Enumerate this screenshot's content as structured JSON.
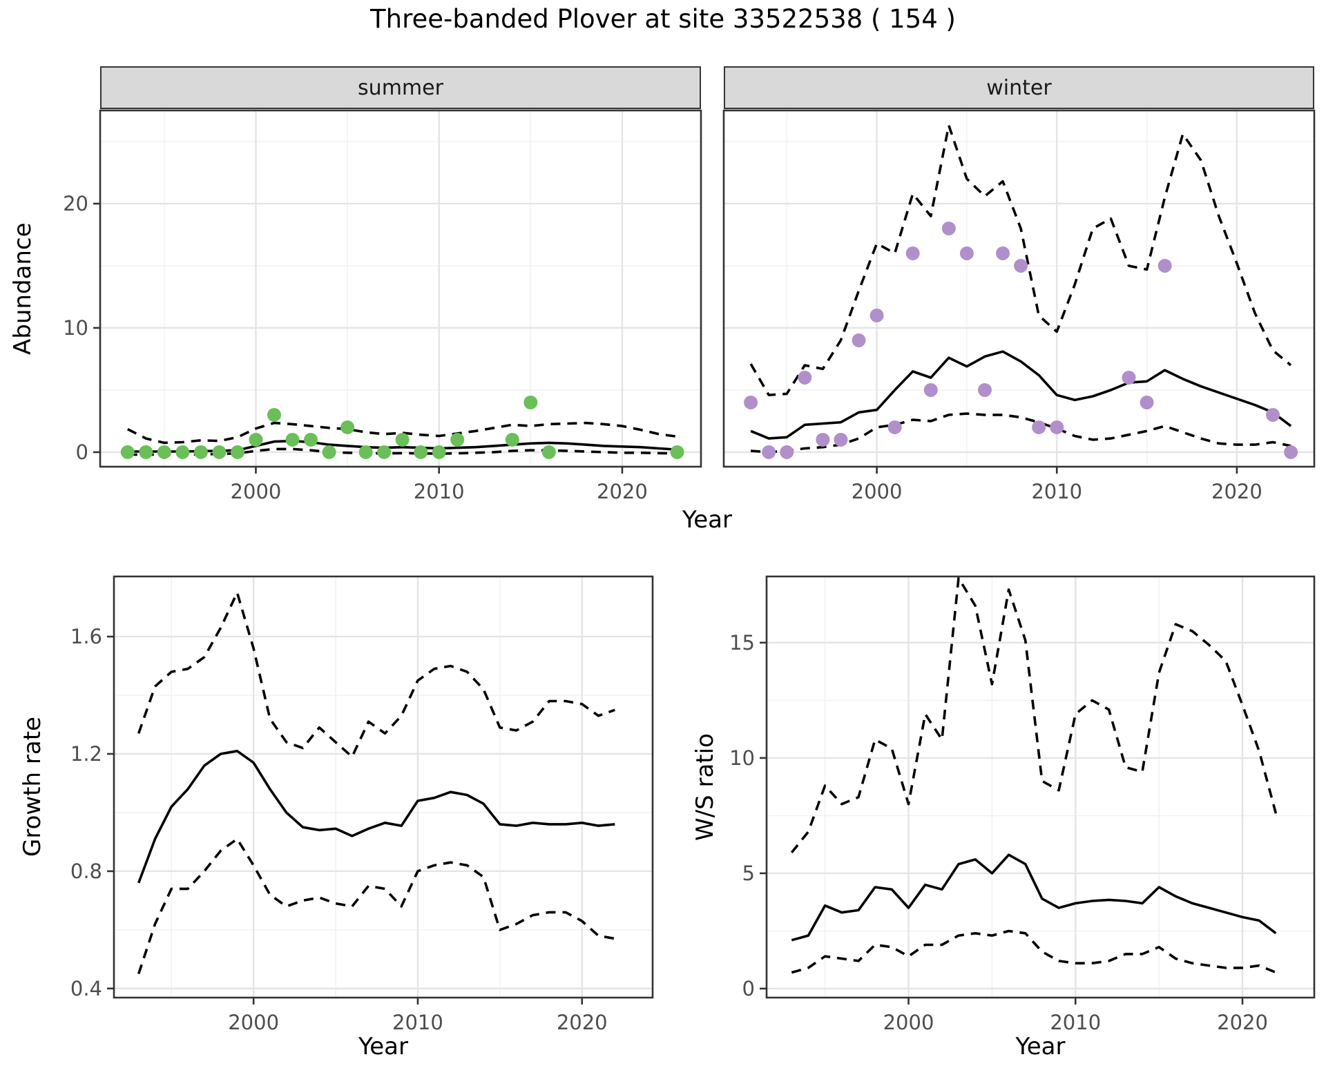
{
  "title": "Three-banded Plover at site 33522538 ( 154 )",
  "facets": {
    "summer": "summer",
    "winter": "winter"
  },
  "axes": {
    "x_label": "Year",
    "abundance_label": "Abundance",
    "growth_label": "Growth rate",
    "ws_label": "W/S ratio"
  },
  "colors": {
    "summer_points": "#6abf59",
    "winter_points": "#b18fcb",
    "line": "#000000",
    "strip_bg": "#d9d9d9",
    "grid_major": "#e4e4e4",
    "grid_minor": "#f2f2f2",
    "panel_border": "#333333",
    "tick_mark": "#333333",
    "tick_text": "#4d4d4d"
  },
  "chart_data": [
    {
      "id": "summer-abundance",
      "type": "line",
      "facet": "summer",
      "xlabel": "Year",
      "ylabel": "Abundance",
      "xlim": [
        1991.5,
        2024.3
      ],
      "ylim": [
        -1.17,
        27.5
      ],
      "xticks": [
        2000,
        2010,
        2020
      ],
      "xminor": [
        1995,
        2005,
        2015
      ],
      "yticks": [
        0,
        10,
        20
      ],
      "yminor": [
        5,
        15,
        25
      ],
      "x": [
        1993,
        1994,
        1995,
        1996,
        1997,
        1998,
        1999,
        2000,
        2001,
        2002,
        2003,
        2004,
        2005,
        2006,
        2007,
        2008,
        2009,
        2010,
        2011,
        2012,
        2013,
        2014,
        2015,
        2016,
        2017,
        2018,
        2019,
        2020,
        2021,
        2022,
        2023
      ],
      "series": [
        {
          "name": "median",
          "style": "solid",
          "values": [
            0.05,
            0.05,
            0.05,
            0.05,
            0.08,
            0.1,
            0.15,
            0.5,
            0.85,
            0.9,
            0.8,
            0.6,
            0.5,
            0.4,
            0.35,
            0.4,
            0.35,
            0.3,
            0.35,
            0.4,
            0.5,
            0.6,
            0.7,
            0.75,
            0.7,
            0.6,
            0.5,
            0.45,
            0.4,
            0.3,
            0.2
          ]
        },
        {
          "name": "upper_ci",
          "style": "dashed",
          "values": [
            1.85,
            1.1,
            0.75,
            0.8,
            0.95,
            0.9,
            1.2,
            1.9,
            2.35,
            2.25,
            2.1,
            1.95,
            1.85,
            1.6,
            1.45,
            1.55,
            1.4,
            1.3,
            1.5,
            1.7,
            1.95,
            2.2,
            2.1,
            2.25,
            2.3,
            2.35,
            2.25,
            2.1,
            1.8,
            1.45,
            1.25
          ]
        },
        {
          "name": "lower_ci",
          "style": "dashed",
          "values": [
            -0.2,
            -0.2,
            -0.2,
            -0.2,
            -0.18,
            -0.15,
            -0.1,
            0.1,
            0.25,
            0.25,
            0.15,
            0.0,
            -0.05,
            -0.08,
            -0.1,
            -0.08,
            -0.1,
            -0.12,
            -0.1,
            -0.05,
            0.0,
            0.1,
            0.15,
            0.15,
            0.1,
            0.05,
            0.0,
            -0.05,
            -0.05,
            -0.08,
            -0.1
          ]
        }
      ],
      "points": {
        "color": "#6abf59",
        "x": [
          1993,
          1994,
          1995,
          1996,
          1997,
          1998,
          1999,
          2000,
          2001,
          2002,
          2003,
          2004,
          2005,
          2006,
          2007,
          2008,
          2009,
          2010,
          2011,
          2014,
          2015,
          2016,
          2023
        ],
        "y": [
          0,
          0,
          0,
          0,
          0,
          0,
          0,
          1,
          3,
          1,
          1,
          0,
          2,
          0,
          0,
          1,
          0,
          0,
          1,
          1,
          4,
          0,
          0
        ]
      }
    },
    {
      "id": "winter-abundance",
      "type": "line",
      "facet": "winter",
      "xlabel": "Year",
      "ylabel": "Abundance",
      "xlim": [
        1991.5,
        2024.3
      ],
      "ylim": [
        -1.17,
        27.5
      ],
      "xticks": [
        2000,
        2010,
        2020
      ],
      "xminor": [
        1995,
        2005,
        2015
      ],
      "yticks": [
        0,
        10,
        20
      ],
      "yminor": [
        5,
        15,
        25
      ],
      "x": [
        1993,
        1994,
        1995,
        1996,
        1997,
        1998,
        1999,
        2000,
        2001,
        2002,
        2003,
        2004,
        2005,
        2006,
        2007,
        2008,
        2009,
        2010,
        2011,
        2012,
        2013,
        2014,
        2015,
        2016,
        2017,
        2018,
        2019,
        2020,
        2021,
        2022,
        2023
      ],
      "series": [
        {
          "name": "median",
          "style": "solid",
          "values": [
            1.7,
            1.1,
            1.2,
            2.2,
            2.3,
            2.4,
            3.2,
            3.4,
            5.0,
            6.5,
            6.0,
            7.6,
            6.9,
            7.7,
            8.1,
            7.3,
            6.2,
            4.6,
            4.2,
            4.5,
            5.0,
            5.6,
            5.7,
            6.6,
            5.9,
            5.3,
            4.8,
            4.3,
            3.8,
            3.2,
            2.1
          ]
        },
        {
          "name": "upper_ci",
          "style": "dashed",
          "values": [
            7.1,
            4.6,
            4.7,
            7.0,
            6.7,
            9.0,
            13.0,
            16.8,
            16.0,
            20.8,
            19.0,
            26.3,
            22.0,
            20.6,
            21.8,
            18.0,
            11.0,
            9.7,
            13.5,
            18.0,
            18.8,
            15.0,
            14.7,
            20.5,
            25.6,
            23.5,
            19.0,
            15.2,
            11.2,
            8.2,
            7.0
          ]
        },
        {
          "name": "lower_ci",
          "style": "dashed",
          "values": [
            0.1,
            0.0,
            0.1,
            0.3,
            0.4,
            0.6,
            1.1,
            2.0,
            2.2,
            2.6,
            2.5,
            3.0,
            3.1,
            3.0,
            3.0,
            2.8,
            2.4,
            1.9,
            1.3,
            1.0,
            1.1,
            1.4,
            1.7,
            2.1,
            1.6,
            1.1,
            0.7,
            0.6,
            0.6,
            0.8,
            0.5
          ]
        }
      ],
      "points": {
        "color": "#b18fcb",
        "x": [
          1993,
          1994,
          1995,
          1996,
          1997,
          1998,
          1999,
          2000,
          2001,
          2002,
          2003,
          2004,
          2005,
          2006,
          2007,
          2008,
          2009,
          2010,
          2014,
          2015,
          2016,
          2022,
          2023
        ],
        "y": [
          4,
          0,
          0,
          6,
          1,
          1,
          9,
          11,
          2,
          16,
          5,
          18,
          16,
          5,
          16,
          15,
          2,
          2,
          6,
          4,
          15,
          3,
          0
        ]
      }
    },
    {
      "id": "growth-rate",
      "type": "line",
      "facet": null,
      "xlabel": "Year",
      "ylabel": "Growth rate",
      "xlim": [
        1991.5,
        2024.3
      ],
      "ylim": [
        0.369,
        1.805
      ],
      "xticks": [
        2000,
        2010,
        2020
      ],
      "xminor": [
        1995,
        2005,
        2015
      ],
      "yticks": [
        0.4,
        0.8,
        1.2,
        1.6
      ],
      "yminor": [
        0.6,
        1.0,
        1.4
      ],
      "x": [
        1993,
        1994,
        1995,
        1996,
        1997,
        1998,
        1999,
        2000,
        2001,
        2002,
        2003,
        2004,
        2005,
        2006,
        2007,
        2008,
        2009,
        2010,
        2011,
        2012,
        2013,
        2014,
        2015,
        2016,
        2017,
        2018,
        2019,
        2020,
        2021,
        2022
      ],
      "series": [
        {
          "name": "median",
          "style": "solid",
          "values": [
            0.76,
            0.91,
            1.02,
            1.08,
            1.16,
            1.2,
            1.21,
            1.17,
            1.08,
            1.0,
            0.95,
            0.94,
            0.945,
            0.92,
            0.945,
            0.965,
            0.955,
            1.04,
            1.05,
            1.07,
            1.06,
            1.03,
            0.96,
            0.955,
            0.965,
            0.96,
            0.96,
            0.965,
            0.955,
            0.96
          ]
        },
        {
          "name": "upper_ci",
          "style": "dashed",
          "values": [
            1.27,
            1.43,
            1.48,
            1.49,
            1.53,
            1.63,
            1.75,
            1.56,
            1.32,
            1.24,
            1.22,
            1.29,
            1.24,
            1.19,
            1.31,
            1.27,
            1.33,
            1.45,
            1.49,
            1.5,
            1.48,
            1.42,
            1.29,
            1.28,
            1.31,
            1.38,
            1.38,
            1.37,
            1.33,
            1.35
          ]
        },
        {
          "name": "lower_ci",
          "style": "dashed",
          "values": [
            0.45,
            0.62,
            0.74,
            0.74,
            0.8,
            0.87,
            0.91,
            0.82,
            0.72,
            0.68,
            0.7,
            0.71,
            0.69,
            0.68,
            0.75,
            0.74,
            0.68,
            0.8,
            0.82,
            0.83,
            0.82,
            0.78,
            0.6,
            0.62,
            0.65,
            0.66,
            0.66,
            0.63,
            0.58,
            0.57
          ]
        }
      ],
      "points": null
    },
    {
      "id": "ws-ratio",
      "type": "line",
      "facet": null,
      "xlabel": "Year",
      "ylabel": "W/S ratio",
      "xlim": [
        1991.5,
        2024.3
      ],
      "ylim": [
        -0.39,
        17.87
      ],
      "xticks": [
        2000,
        2010,
        2020
      ],
      "xminor": [
        1995,
        2005,
        2015
      ],
      "yticks": [
        0,
        5,
        10,
        15
      ],
      "yminor": [
        2.5,
        7.5,
        12.5
      ],
      "x": [
        1993,
        1994,
        1995,
        1996,
        1997,
        1998,
        1999,
        2000,
        2001,
        2002,
        2003,
        2004,
        2005,
        2006,
        2007,
        2008,
        2009,
        2010,
        2011,
        2012,
        2013,
        2014,
        2015,
        2016,
        2017,
        2018,
        2019,
        2020,
        2021,
        2022
      ],
      "series": [
        {
          "name": "median",
          "style": "solid",
          "values": [
            2.1,
            2.3,
            3.6,
            3.3,
            3.4,
            4.4,
            4.3,
            3.5,
            4.5,
            4.3,
            5.4,
            5.6,
            5.0,
            5.8,
            5.4,
            3.9,
            3.5,
            3.7,
            3.8,
            3.85,
            3.8,
            3.7,
            4.4,
            4.0,
            3.7,
            3.5,
            3.3,
            3.1,
            2.95,
            2.4
          ]
        },
        {
          "name": "upper_ci",
          "style": "dashed",
          "values": [
            5.9,
            6.8,
            8.8,
            8.0,
            8.3,
            10.8,
            10.4,
            8.0,
            11.9,
            10.8,
            17.8,
            16.6,
            13.2,
            17.3,
            15.1,
            9.0,
            8.6,
            11.9,
            12.5,
            12.1,
            9.6,
            9.4,
            13.7,
            15.8,
            15.5,
            14.9,
            14.2,
            12.3,
            10.3,
            7.6
          ]
        },
        {
          "name": "lower_ci",
          "style": "dashed",
          "values": [
            0.7,
            0.9,
            1.4,
            1.3,
            1.2,
            1.9,
            1.8,
            1.4,
            1.9,
            1.9,
            2.3,
            2.4,
            2.3,
            2.5,
            2.4,
            1.6,
            1.2,
            1.1,
            1.1,
            1.2,
            1.5,
            1.5,
            1.8,
            1.3,
            1.1,
            1.0,
            0.9,
            0.9,
            1.0,
            0.7
          ]
        }
      ],
      "points": null
    }
  ]
}
